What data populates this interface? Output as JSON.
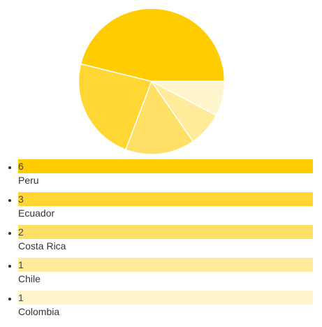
{
  "chart_data": {
    "type": "pie",
    "categories": [
      "Peru",
      "Ecuador",
      "Costa Rica",
      "Chile",
      "Colombia"
    ],
    "values": [
      6,
      3,
      2,
      1,
      1
    ],
    "colors": [
      "#ffcc00",
      "#ffd633",
      "#ffe066",
      "#ffeb99",
      "#fff5cc"
    ],
    "title": "",
    "legend": "bottom"
  }
}
